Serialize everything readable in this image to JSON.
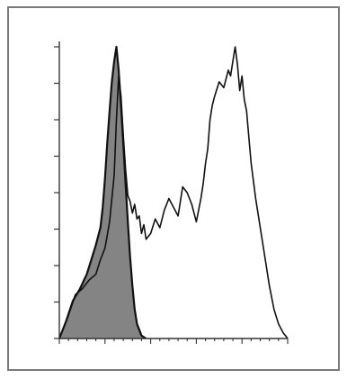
{
  "chart_data": {
    "type": "area",
    "title": "",
    "xlabel": "",
    "ylabel": "",
    "xlim": [
      0,
      100
    ],
    "ylim": [
      0,
      100
    ],
    "grid": false,
    "legend": "none",
    "y_tick_count": 9,
    "x_tick_count": 26,
    "series": [
      {
        "fill": "#6e6e6e",
        "stroke": "#111111",
        "x": [
          0,
          3,
          6,
          9,
          12,
          14,
          16,
          18,
          19,
          20,
          21,
          22,
          23,
          24,
          25,
          26,
          27,
          28,
          29,
          30,
          31,
          32,
          33,
          34,
          36,
          38
        ],
        "y": [
          0,
          6,
          13,
          17,
          22,
          27,
          32,
          38,
          45,
          55,
          67,
          78,
          88,
          95,
          100,
          92,
          80,
          67,
          53,
          40,
          28,
          18,
          10,
          5,
          1,
          0
        ]
      },
      {
        "fill": "none",
        "stroke": "#111111",
        "x": [
          0,
          4,
          7,
          10,
          13,
          16,
          18,
          20,
          22,
          24,
          25,
          26,
          27,
          28,
          29,
          30,
          31,
          32,
          33,
          34,
          35,
          36,
          37,
          38,
          40,
          42,
          44,
          46,
          48,
          50,
          52,
          54,
          56,
          58,
          60,
          62,
          63,
          64,
          65,
          66,
          67,
          68,
          70,
          72,
          74,
          75,
          76,
          77,
          78,
          79,
          80,
          81,
          82,
          83,
          84,
          86,
          88,
          90,
          92,
          94,
          96,
          98,
          100
        ],
        "y": [
          0,
          8,
          15,
          17,
          20,
          22,
          27,
          31,
          40,
          56,
          75,
          90,
          83,
          70,
          58,
          49,
          47,
          43,
          46,
          41,
          42,
          36,
          39,
          34,
          36,
          41,
          38,
          44,
          48,
          45,
          42,
          52,
          50,
          46,
          40,
          48,
          53,
          60,
          65,
          75,
          80,
          83,
          88,
          86,
          92,
          90,
          95,
          100,
          94,
          85,
          90,
          82,
          78,
          69,
          60,
          48,
          38,
          28,
          18,
          10,
          5,
          2,
          0
        ]
      }
    ]
  }
}
